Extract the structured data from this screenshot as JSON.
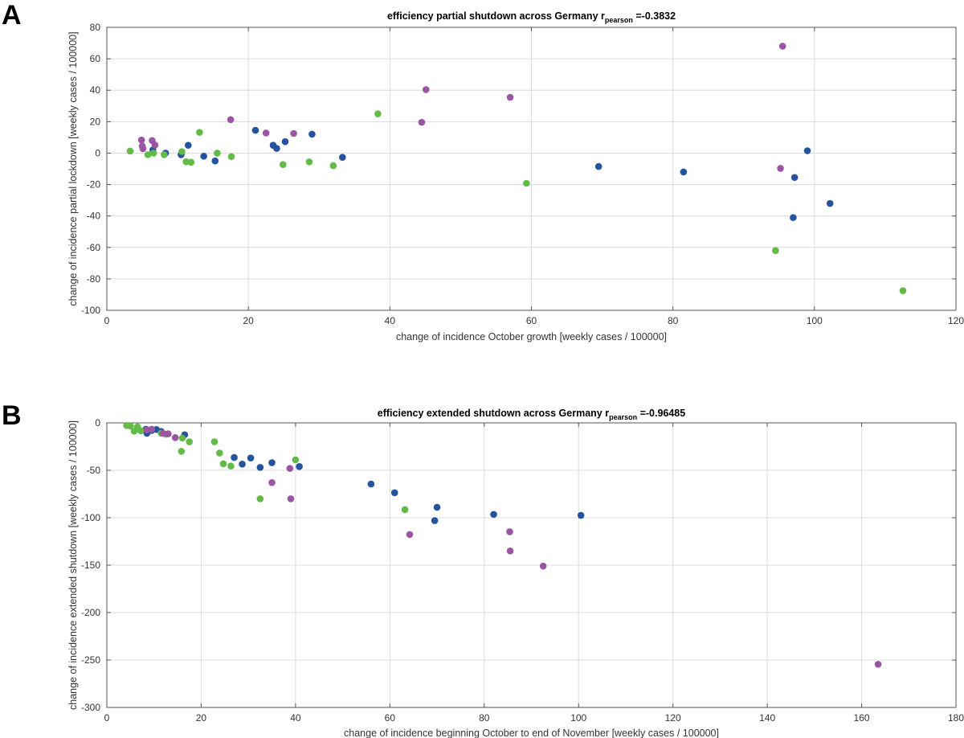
{
  "chart_data": [
    {
      "type": "scatter",
      "panel_label": "A",
      "title_main": "efficiency partial shutdown across Germany  r",
      "title_subscript": "pearson",
      "title_value": " =-0.3832",
      "xlabel": "change of incidence October growth [weekly cases / 100000]",
      "ylabel": "change of incidence partial lockdown [weekly cases / 100000]",
      "xlim": [
        0,
        120
      ],
      "ylim": [
        -100,
        80
      ],
      "xticks": [
        0,
        20,
        40,
        60,
        80,
        100,
        120
      ],
      "yticks": [
        -100,
        -80,
        -60,
        -40,
        -20,
        0,
        20,
        40,
        60,
        80
      ],
      "grid": true,
      "series": [
        {
          "color": "#2453a0",
          "points": [
            [
              6.5,
              2
            ],
            [
              8.3,
              0
            ],
            [
              10.5,
              -1
            ],
            [
              11.5,
              5
            ],
            [
              13.7,
              -2
            ],
            [
              15.3,
              -5
            ],
            [
              21,
              14.5
            ],
            [
              23.5,
              5
            ],
            [
              24,
              3
            ],
            [
              25.2,
              7.3
            ],
            [
              29,
              12
            ],
            [
              33.3,
              -2.7
            ],
            [
              69.5,
              -8.5
            ],
            [
              81.5,
              -12
            ],
            [
              97,
              -41
            ],
            [
              97.2,
              -15.5
            ],
            [
              99,
              1.5
            ],
            [
              102.2,
              -32
            ]
          ]
        },
        {
          "color": "#61bb46",
          "points": [
            [
              3.3,
              1.3
            ],
            [
              5.8,
              -1
            ],
            [
              6.6,
              0
            ],
            [
              8.1,
              -1
            ],
            [
              10.6,
              1
            ],
            [
              11.2,
              -5.5
            ],
            [
              11.9,
              -5.8
            ],
            [
              13.1,
              13.2
            ],
            [
              15.6,
              0
            ],
            [
              17.6,
              -2.2
            ],
            [
              24.9,
              -7.3
            ],
            [
              28.6,
              -5.6
            ],
            [
              32,
              -8
            ],
            [
              38.3,
              25
            ],
            [
              59.3,
              -19.2
            ],
            [
              94.5,
              -62
            ],
            [
              112.5,
              -87.5
            ]
          ]
        },
        {
          "color": "#9b56a3",
          "points": [
            [
              4.9,
              8.3
            ],
            [
              5,
              4.5
            ],
            [
              5.1,
              2.8
            ],
            [
              6.4,
              8
            ],
            [
              6.8,
              5.1
            ],
            [
              17.5,
              21.3
            ],
            [
              22.5,
              12.8
            ],
            [
              26.4,
              12.5
            ],
            [
              44.5,
              19.6
            ],
            [
              45.1,
              40.4
            ],
            [
              57,
              35.5
            ],
            [
              95.2,
              -9.7
            ],
            [
              95.5,
              68
            ]
          ]
        }
      ]
    },
    {
      "type": "scatter",
      "panel_label": "B",
      "title_main": "efficiency extended shutdown across Germany  r",
      "title_subscript": "pearson",
      "title_value": " =-0.96485",
      "xlabel": "change of incidence beginning October to end of November [weekly cases / 100000]",
      "ylabel": "change of incidence extended shutdown [weekly cases / 100000]",
      "xlim": [
        0,
        180
      ],
      "ylim": [
        -300,
        0
      ],
      "xticks": [
        0,
        20,
        40,
        60,
        80,
        100,
        120,
        140,
        160,
        180
      ],
      "yticks": [
        -300,
        -250,
        -200,
        -150,
        -100,
        -50,
        0
      ],
      "grid": true,
      "series": [
        {
          "color": "#2453a0",
          "points": [
            [
              8.3,
              -6.7
            ],
            [
              8.5,
              -11
            ],
            [
              9.5,
              -8
            ],
            [
              10.5,
              -7
            ],
            [
              11.5,
              -9
            ],
            [
              16.5,
              -12.5
            ],
            [
              27,
              -36.5
            ],
            [
              28.7,
              -43.5
            ],
            [
              30.5,
              -37
            ],
            [
              32.5,
              -47
            ],
            [
              35,
              -42
            ],
            [
              40.8,
              -46
            ],
            [
              56,
              -64.5
            ],
            [
              61,
              -73.7
            ],
            [
              69.5,
              -103
            ],
            [
              70,
              -89
            ],
            [
              82,
              -96.5
            ],
            [
              100.5,
              -97.5
            ]
          ]
        },
        {
          "color": "#61bb46",
          "points": [
            [
              4.2,
              -2.8
            ],
            [
              5,
              -3.3
            ],
            [
              5.8,
              -8.8
            ],
            [
              6.5,
              -4.2
            ],
            [
              7.2,
              -8.3
            ],
            [
              11.5,
              -11
            ],
            [
              12.5,
              -12
            ],
            [
              15.8,
              -30
            ],
            [
              16,
              -16
            ],
            [
              17.5,
              -20
            ],
            [
              22.8,
              -20
            ],
            [
              23.9,
              -31.8
            ],
            [
              24.7,
              -43.2
            ],
            [
              26.3,
              -45.5
            ],
            [
              32.5,
              -80
            ],
            [
              40,
              -39
            ],
            [
              63.2,
              -91.5
            ]
          ]
        },
        {
          "color": "#9b56a3",
          "points": [
            [
              8.5,
              -7.5
            ],
            [
              9.5,
              -6.7
            ],
            [
              11.9,
              -11
            ],
            [
              13,
              -11.5
            ],
            [
              14.5,
              -15.5
            ],
            [
              35,
              -63
            ],
            [
              38.8,
              -48
            ],
            [
              39,
              -80
            ],
            [
              64.2,
              -117.7
            ],
            [
              85.4,
              -114.8
            ],
            [
              85.5,
              -135
            ],
            [
              92.5,
              -151
            ],
            [
              163.5,
              -254.5
            ]
          ]
        }
      ]
    }
  ]
}
